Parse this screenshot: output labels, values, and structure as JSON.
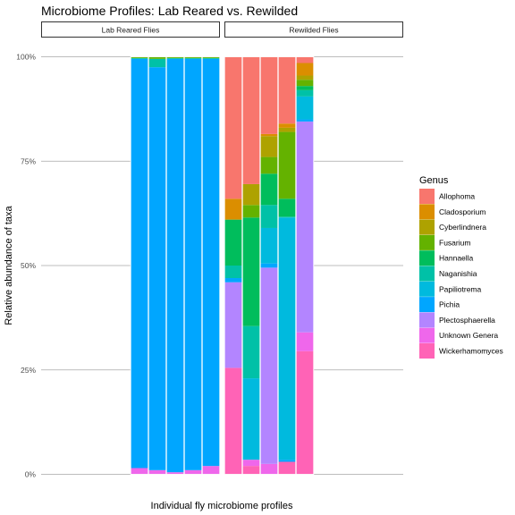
{
  "chart_data": {
    "type": "bar",
    "stacked": true,
    "title": "Microbiome Profiles: Lab Reared vs. Rewilded",
    "xlabel": "Individual fly microbiome profiles",
    "ylabel": "Relative abundance of taxa",
    "ylim": [
      0,
      1
    ],
    "yticks": [
      {
        "value": 0,
        "label": "0%"
      },
      {
        "value": 0.25,
        "label": "25%"
      },
      {
        "value": 0.5,
        "label": "50%"
      },
      {
        "value": 0.75,
        "label": "75%"
      },
      {
        "value": 1,
        "label": "100%"
      }
    ],
    "grid": true,
    "legend": {
      "title": "Genus",
      "placement": "right",
      "entries": [
        {
          "name": "Allophoma",
          "color": "#F8766D"
        },
        {
          "name": "Cladosporium",
          "color": "#DB8E00"
        },
        {
          "name": "Cyberlindnera",
          "color": "#AEA200"
        },
        {
          "name": "Fusarium",
          "color": "#64B200"
        },
        {
          "name": "Hannaella",
          "color": "#00BD5C"
        },
        {
          "name": "Naganishia",
          "color": "#00C1A7"
        },
        {
          "name": "Papiliotrema",
          "color": "#00BADE"
        },
        {
          "name": "Pichia",
          "color": "#00A6FF"
        },
        {
          "name": "Plectosphaerella",
          "color": "#B385FF"
        },
        {
          "name": "Unknown Genera",
          "color": "#EF67EB"
        },
        {
          "name": "Wickerhamomyces",
          "color": "#FF63B6"
        }
      ]
    },
    "panels": [
      {
        "label": "Lab Reared Flies",
        "slots": 10,
        "samples": [
          {
            "slot": 5,
            "values": {
              "Unknown Genera": 0.015,
              "Pichia": 0.98,
              "Naganishia": 0.002,
              "Fusarium": 0.003
            }
          },
          {
            "slot": 6,
            "values": {
              "Unknown Genera": 0.01,
              "Pichia": 0.965,
              "Naganishia": 0.02,
              "Fusarium": 0.005
            }
          },
          {
            "slot": 7,
            "values": {
              "Unknown Genera": 0.005,
              "Pichia": 0.99,
              "Naganishia": 0.002,
              "Fusarium": 0.003
            }
          },
          {
            "slot": 8,
            "values": {
              "Unknown Genera": 0.01,
              "Pichia": 0.985,
              "Naganishia": 0.002,
              "Fusarium": 0.003
            }
          },
          {
            "slot": 9,
            "values": {
              "Unknown Genera": 0.02,
              "Pichia": 0.975,
              "Naganishia": 0.002,
              "Fusarium": 0.003
            }
          }
        ]
      },
      {
        "label": "Rewilded Flies",
        "slots": 10,
        "samples": [
          {
            "slot": 0,
            "values": {
              "Wickerhamomyces": 0.255,
              "Plectosphaerella": 0.205,
              "Pichia": 0.01,
              "Naganishia": 0.03,
              "Hannaella": 0.11,
              "Cladosporium": 0.05,
              "Allophoma": 0.34
            }
          },
          {
            "slot": 1,
            "values": {
              "Wickerhamomyces": 0.02,
              "Unknown Genera": 0.015,
              "Papiliotrema": 0.195,
              "Naganishia": 0.125,
              "Hannaella": 0.26,
              "Fusarium": 0.03,
              "Cyberlindnera": 0.05,
              "Allophoma": 0.305
            }
          },
          {
            "slot": 2,
            "values": {
              "Unknown Genera": 0.025,
              "Plectosphaerella": 0.47,
              "Pichia": 0.01,
              "Papiliotrema": 0.085,
              "Naganishia": 0.055,
              "Hannaella": 0.075,
              "Fusarium": 0.04,
              "Cyberlindnera": 0.05,
              "Cladosporium": 0.005,
              "Allophoma": 0.185
            }
          },
          {
            "slot": 3,
            "values": {
              "Wickerhamomyces": 0.03,
              "Pichia": 0.005,
              "Papiliotrema": 0.58,
              "Naganishia": 0.002,
              "Hannaella": 0.043,
              "Fusarium": 0.16,
              "Cyberlindnera": 0.01,
              "Cladosporium": 0.01,
              "Allophoma": 0.16
            }
          },
          {
            "slot": 4,
            "values": {
              "Wickerhamomyces": 0.295,
              "Unknown Genera": 0.045,
              "Plectosphaerella": 0.505,
              "Pichia": 0.005,
              "Papiliotrema": 0.055,
              "Naganishia": 0.015,
              "Hannaella": 0.01,
              "Fusarium": 0.015,
              "Cyberlindnera": 0.01,
              "Cladosporium": 0.03,
              "Allophoma": 0.015
            }
          }
        ]
      }
    ]
  }
}
